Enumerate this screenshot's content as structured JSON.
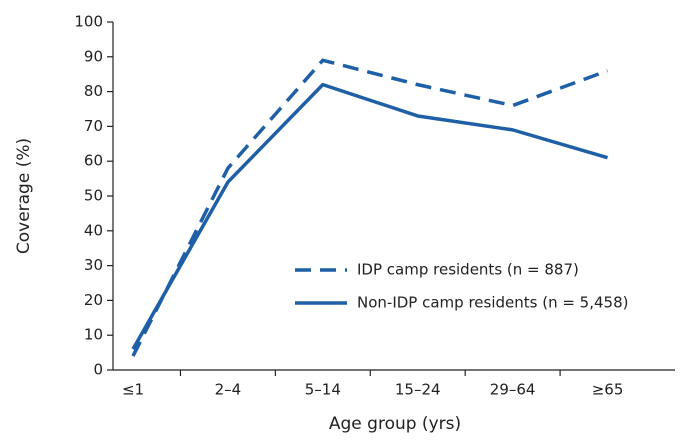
{
  "chart_data": {
    "type": "line",
    "xlabel": "Age group (yrs)",
    "ylabel": "Coverage (%)",
    "categories": [
      "≤1",
      "2–4",
      "5–14",
      "15–24",
      "29–64",
      "≥65"
    ],
    "series": [
      {
        "name": "IDP camp residents (n = 887)",
        "color": "#1f5fa6",
        "dashed": true,
        "values": [
          4,
          58,
          89,
          82,
          76,
          86
        ]
      },
      {
        "name": "Non-IDP camp residents (n = 5,458)",
        "color": "#1f5fa6",
        "dashed": false,
        "values": [
          6,
          54,
          82,
          73,
          69,
          61
        ]
      }
    ],
    "ylim": [
      0,
      100
    ],
    "yticks": [
      0,
      10,
      20,
      30,
      40,
      50,
      60,
      70,
      80,
      90,
      100
    ],
    "grid": false,
    "legend": "lower right"
  }
}
